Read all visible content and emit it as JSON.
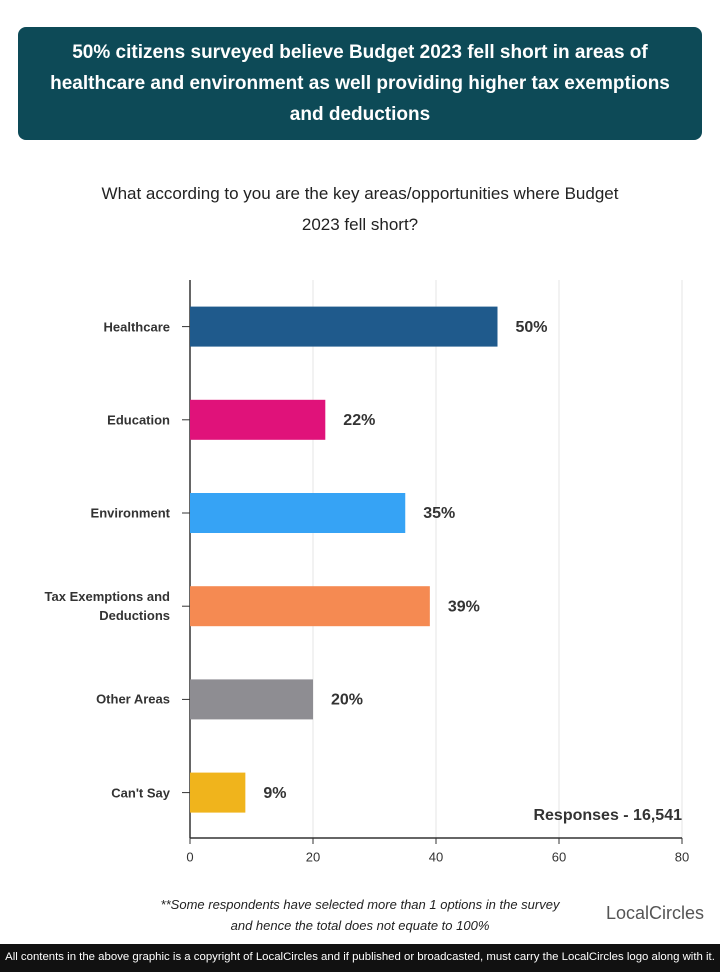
{
  "header": {
    "title": "50% citizens surveyed believe Budget 2023 fell short in areas of healthcare and environment as well providing higher tax exemptions and deductions"
  },
  "chart_data": {
    "type": "bar",
    "orientation": "horizontal",
    "title": "What according to you are the key areas/opportunities where Budget 2023 fell short?",
    "categories": [
      "Healthcare",
      "Education",
      "Environment",
      "Tax Exemptions and Deductions",
      "Other Areas",
      "Can't Say"
    ],
    "values": [
      50,
      22,
      35,
      39,
      20,
      9
    ],
    "value_labels": [
      "50%",
      "22%",
      "35%",
      "39%",
      "20%",
      "9%"
    ],
    "colors": [
      "#1f5a8c",
      "#e0127a",
      "#36a3f5",
      "#f58a52",
      "#8e8d92",
      "#f0b41c"
    ],
    "xlim": [
      0,
      80
    ],
    "xticks": [
      0,
      20,
      40,
      60,
      80
    ],
    "grid": true,
    "annotation": "Responses - 16,541"
  },
  "footer": {
    "notes": [
      "**Some respondents have selected more than 1 options in the survey",
      "and hence the total does not equate to 100%"
    ],
    "logo": "LocalCircles",
    "copyright": "All contents in the above graphic is a copyright of LocalCircles and if published or broadcasted, must carry the LocalCircles logo along with it."
  }
}
